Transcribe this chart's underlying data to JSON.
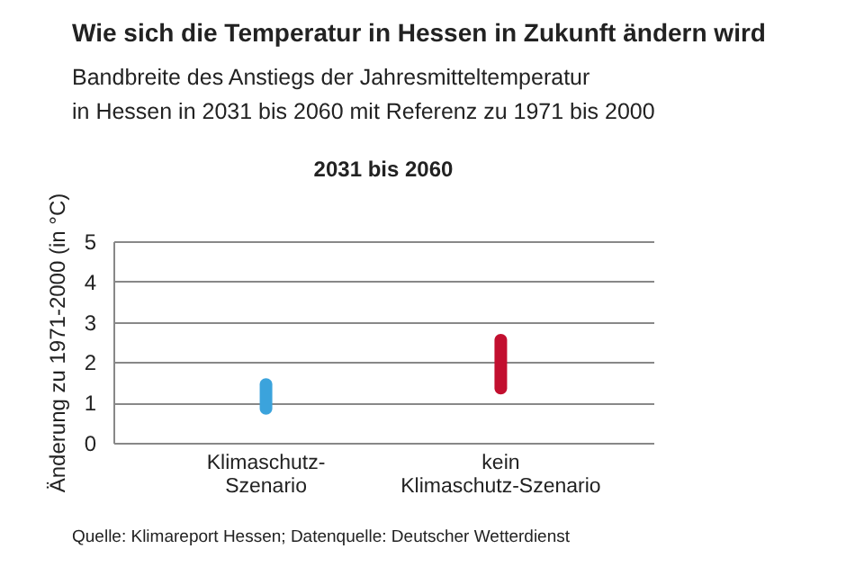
{
  "chart_data": {
    "type": "bar",
    "title": "Wie sich die Temperatur in Hessen in Zukunft ändern wird",
    "subtitle": "Bandbreite des Anstiegs der Jahresmitteltemperatur\nin Hessen in 2031 bis 2060 mit Referenz zu 1971 bis 2000",
    "ylabel": "Änderung zu 1971-2000 (in °C)",
    "annotations": [
      "2031 bis 2060",
      "Quelle: Klimareport Hessen; Datenquelle: Deutscher Wetterdienst"
    ],
    "categories": [
      "Klimaschutz-\nSzenario",
      "kein\nKlimaschutz-Szenario"
    ],
    "base": [
      0.7,
      1.2
    ],
    "values": [
      0.9,
      1.5
    ],
    "colors": [
      "#3ba3dc",
      "#c20f2f"
    ],
    "ylim": [
      0,
      5
    ],
    "yticks": [
      0,
      1,
      2,
      3,
      4,
      5
    ],
    "grid": "y"
  }
}
